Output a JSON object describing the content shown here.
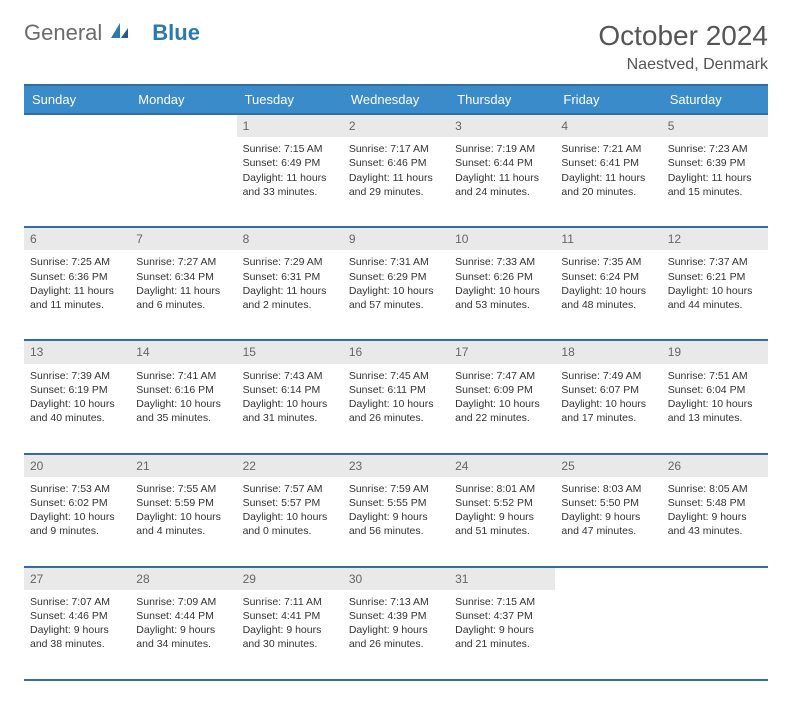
{
  "logo": {
    "general": "General",
    "blue": "Blue"
  },
  "title": "October 2024",
  "location": "Naestved, Denmark",
  "colors": {
    "header_bg": "#3a8bc9",
    "header_border": "#2f6fa3",
    "daynum_bg": "#e9e9e9",
    "text": "#333333"
  },
  "daysOfWeek": [
    "Sunday",
    "Monday",
    "Tuesday",
    "Wednesday",
    "Thursday",
    "Friday",
    "Saturday"
  ],
  "weeks": [
    [
      null,
      null,
      {
        "n": "1",
        "sr": "Sunrise: 7:15 AM",
        "ss": "Sunset: 6:49 PM",
        "dl": "Daylight: 11 hours and 33 minutes."
      },
      {
        "n": "2",
        "sr": "Sunrise: 7:17 AM",
        "ss": "Sunset: 6:46 PM",
        "dl": "Daylight: 11 hours and 29 minutes."
      },
      {
        "n": "3",
        "sr": "Sunrise: 7:19 AM",
        "ss": "Sunset: 6:44 PM",
        "dl": "Daylight: 11 hours and 24 minutes."
      },
      {
        "n": "4",
        "sr": "Sunrise: 7:21 AM",
        "ss": "Sunset: 6:41 PM",
        "dl": "Daylight: 11 hours and 20 minutes."
      },
      {
        "n": "5",
        "sr": "Sunrise: 7:23 AM",
        "ss": "Sunset: 6:39 PM",
        "dl": "Daylight: 11 hours and 15 minutes."
      }
    ],
    [
      {
        "n": "6",
        "sr": "Sunrise: 7:25 AM",
        "ss": "Sunset: 6:36 PM",
        "dl": "Daylight: 11 hours and 11 minutes."
      },
      {
        "n": "7",
        "sr": "Sunrise: 7:27 AM",
        "ss": "Sunset: 6:34 PM",
        "dl": "Daylight: 11 hours and 6 minutes."
      },
      {
        "n": "8",
        "sr": "Sunrise: 7:29 AM",
        "ss": "Sunset: 6:31 PM",
        "dl": "Daylight: 11 hours and 2 minutes."
      },
      {
        "n": "9",
        "sr": "Sunrise: 7:31 AM",
        "ss": "Sunset: 6:29 PM",
        "dl": "Daylight: 10 hours and 57 minutes."
      },
      {
        "n": "10",
        "sr": "Sunrise: 7:33 AM",
        "ss": "Sunset: 6:26 PM",
        "dl": "Daylight: 10 hours and 53 minutes."
      },
      {
        "n": "11",
        "sr": "Sunrise: 7:35 AM",
        "ss": "Sunset: 6:24 PM",
        "dl": "Daylight: 10 hours and 48 minutes."
      },
      {
        "n": "12",
        "sr": "Sunrise: 7:37 AM",
        "ss": "Sunset: 6:21 PM",
        "dl": "Daylight: 10 hours and 44 minutes."
      }
    ],
    [
      {
        "n": "13",
        "sr": "Sunrise: 7:39 AM",
        "ss": "Sunset: 6:19 PM",
        "dl": "Daylight: 10 hours and 40 minutes."
      },
      {
        "n": "14",
        "sr": "Sunrise: 7:41 AM",
        "ss": "Sunset: 6:16 PM",
        "dl": "Daylight: 10 hours and 35 minutes."
      },
      {
        "n": "15",
        "sr": "Sunrise: 7:43 AM",
        "ss": "Sunset: 6:14 PM",
        "dl": "Daylight: 10 hours and 31 minutes."
      },
      {
        "n": "16",
        "sr": "Sunrise: 7:45 AM",
        "ss": "Sunset: 6:11 PM",
        "dl": "Daylight: 10 hours and 26 minutes."
      },
      {
        "n": "17",
        "sr": "Sunrise: 7:47 AM",
        "ss": "Sunset: 6:09 PM",
        "dl": "Daylight: 10 hours and 22 minutes."
      },
      {
        "n": "18",
        "sr": "Sunrise: 7:49 AM",
        "ss": "Sunset: 6:07 PM",
        "dl": "Daylight: 10 hours and 17 minutes."
      },
      {
        "n": "19",
        "sr": "Sunrise: 7:51 AM",
        "ss": "Sunset: 6:04 PM",
        "dl": "Daylight: 10 hours and 13 minutes."
      }
    ],
    [
      {
        "n": "20",
        "sr": "Sunrise: 7:53 AM",
        "ss": "Sunset: 6:02 PM",
        "dl": "Daylight: 10 hours and 9 minutes."
      },
      {
        "n": "21",
        "sr": "Sunrise: 7:55 AM",
        "ss": "Sunset: 5:59 PM",
        "dl": "Daylight: 10 hours and 4 minutes."
      },
      {
        "n": "22",
        "sr": "Sunrise: 7:57 AM",
        "ss": "Sunset: 5:57 PM",
        "dl": "Daylight: 10 hours and 0 minutes."
      },
      {
        "n": "23",
        "sr": "Sunrise: 7:59 AM",
        "ss": "Sunset: 5:55 PM",
        "dl": "Daylight: 9 hours and 56 minutes."
      },
      {
        "n": "24",
        "sr": "Sunrise: 8:01 AM",
        "ss": "Sunset: 5:52 PM",
        "dl": "Daylight: 9 hours and 51 minutes."
      },
      {
        "n": "25",
        "sr": "Sunrise: 8:03 AM",
        "ss": "Sunset: 5:50 PM",
        "dl": "Daylight: 9 hours and 47 minutes."
      },
      {
        "n": "26",
        "sr": "Sunrise: 8:05 AM",
        "ss": "Sunset: 5:48 PM",
        "dl": "Daylight: 9 hours and 43 minutes."
      }
    ],
    [
      {
        "n": "27",
        "sr": "Sunrise: 7:07 AM",
        "ss": "Sunset: 4:46 PM",
        "dl": "Daylight: 9 hours and 38 minutes."
      },
      {
        "n": "28",
        "sr": "Sunrise: 7:09 AM",
        "ss": "Sunset: 4:44 PM",
        "dl": "Daylight: 9 hours and 34 minutes."
      },
      {
        "n": "29",
        "sr": "Sunrise: 7:11 AM",
        "ss": "Sunset: 4:41 PM",
        "dl": "Daylight: 9 hours and 30 minutes."
      },
      {
        "n": "30",
        "sr": "Sunrise: 7:13 AM",
        "ss": "Sunset: 4:39 PM",
        "dl": "Daylight: 9 hours and 26 minutes."
      },
      {
        "n": "31",
        "sr": "Sunrise: 7:15 AM",
        "ss": "Sunset: 4:37 PM",
        "dl": "Daylight: 9 hours and 21 minutes."
      },
      null,
      null
    ]
  ]
}
